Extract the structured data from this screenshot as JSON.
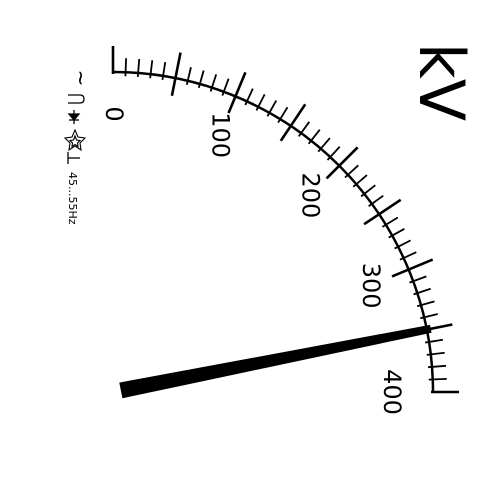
{
  "meter": {
    "unit": "kV",
    "scale_min": 0,
    "scale_max": 400,
    "scale_labels": [
      "0",
      "100",
      "200",
      "300",
      "400"
    ],
    "needle_value": 350,
    "symbols": {
      "ac": "~",
      "frequency_range": "45...55Hz",
      "icons": [
        "ac-symbol-icon",
        "moving-iron-icon",
        "rectifier-icon",
        "insulation-test-star-icon",
        "vertical-position-icon"
      ]
    },
    "colors": {
      "ink": "#000000",
      "dial": "#ffffff"
    }
  }
}
